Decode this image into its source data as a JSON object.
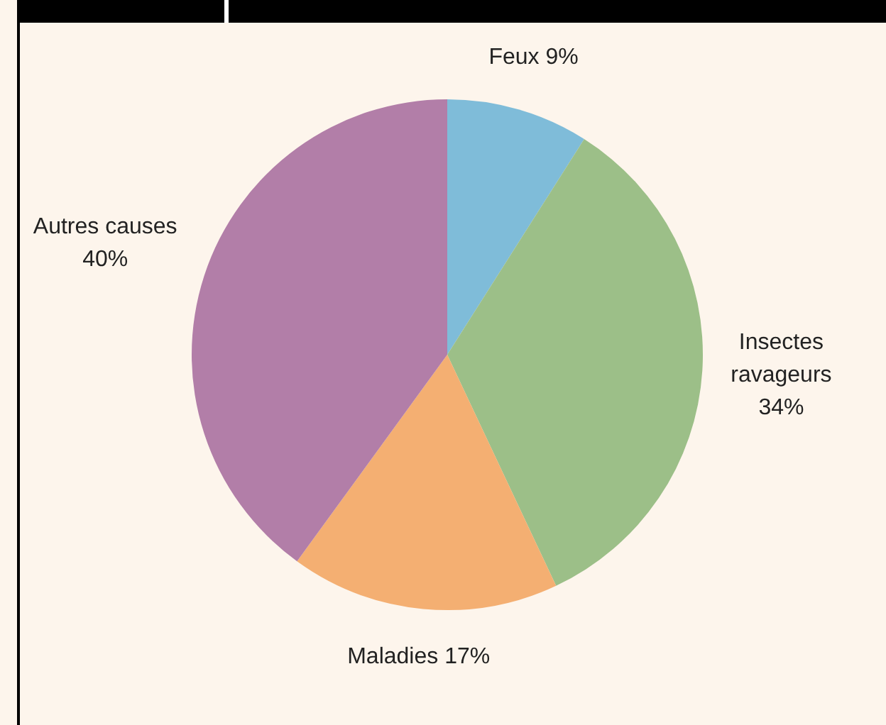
{
  "chart_data": {
    "type": "pie",
    "categories": [
      "Feux",
      "Insectes ravageurs",
      "Maladies",
      "Autres causes"
    ],
    "values": [
      9,
      34,
      17,
      40
    ],
    "colors": [
      "#7fbcd9",
      "#9cbf88",
      "#f4af72",
      "#b27ea8"
    ],
    "value_labels": [
      "9%",
      "34%",
      "17%",
      "40%"
    ],
    "legend": false
  }
}
